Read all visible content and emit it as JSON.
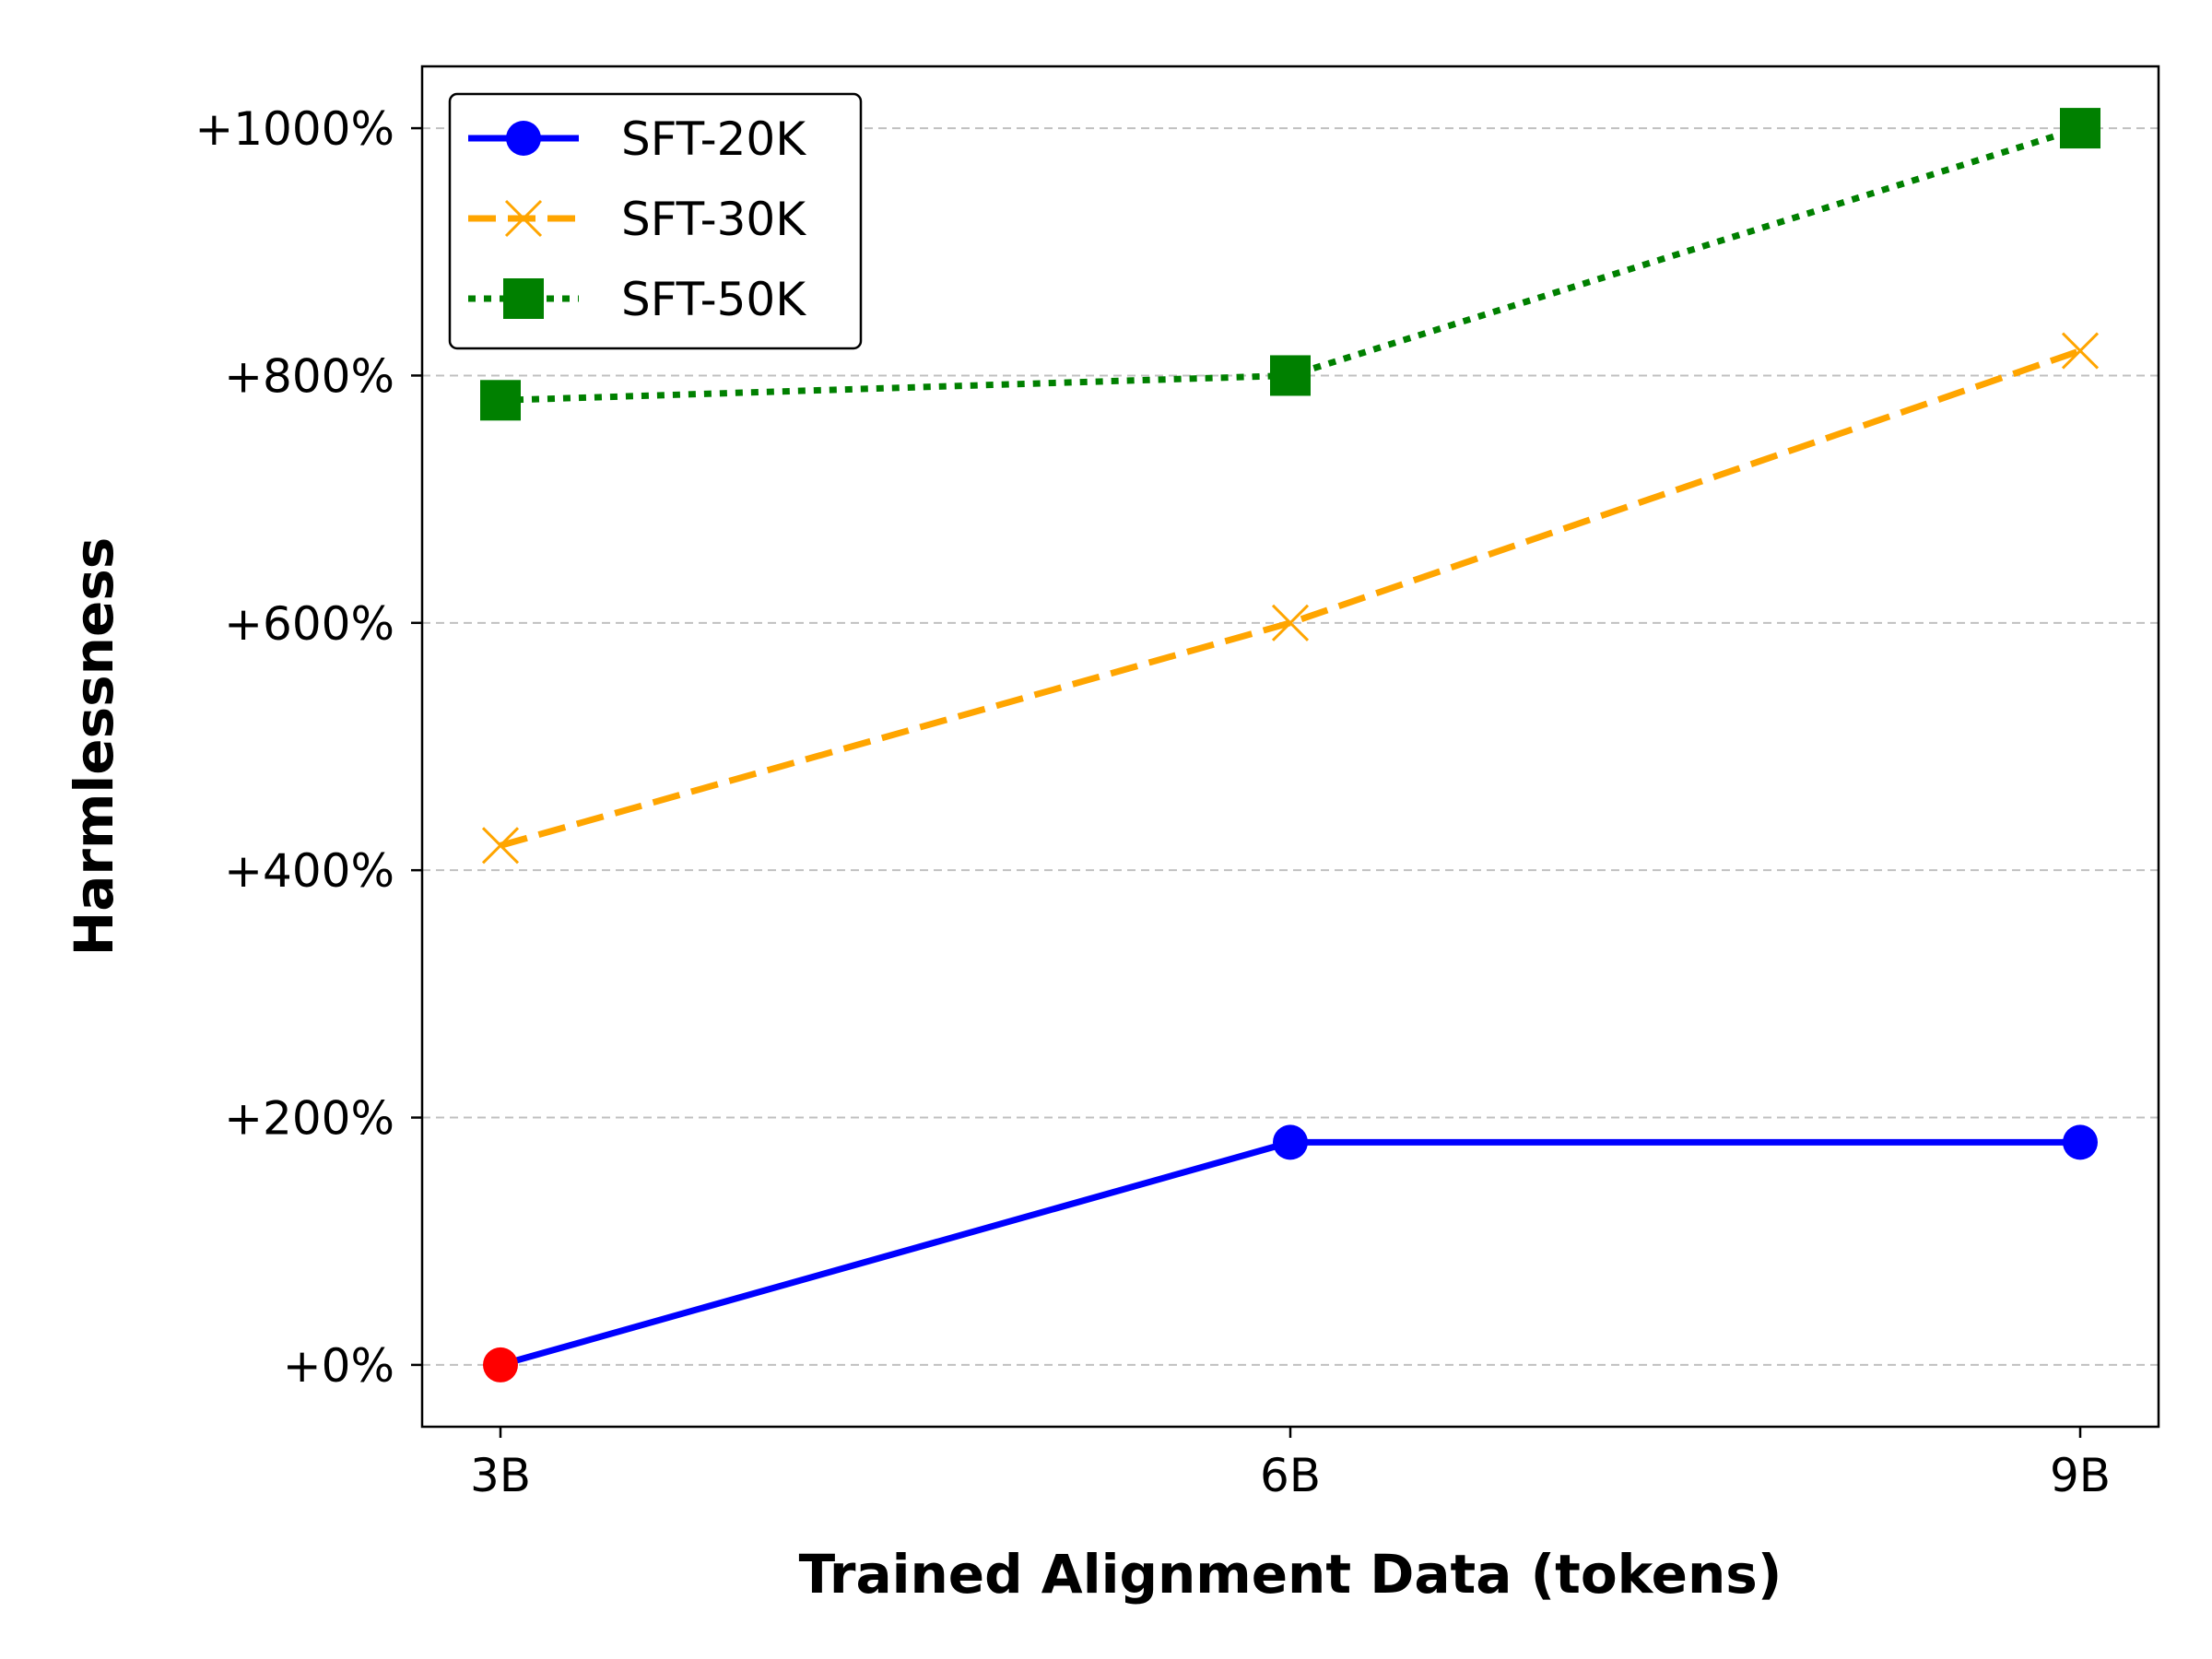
{
  "chart_data": {
    "type": "line",
    "xlabel": "Trained Alignment Data (tokens)",
    "ylabel": "Harmlessness",
    "categories": [
      "3B",
      "6B",
      "9B"
    ],
    "y_ticks": [
      0,
      200,
      400,
      600,
      800,
      1000
    ],
    "y_tick_labels": [
      "+0%",
      "+200%",
      "+400%",
      "+600%",
      "+800%",
      "+1000%"
    ],
    "ylim": [
      -50,
      1050
    ],
    "grid": "horizontal dashed",
    "legend_position": "top-left",
    "series": [
      {
        "name": "SFT-20K",
        "values": [
          0,
          180,
          180
        ],
        "color": "#0000ff",
        "line_style": "solid",
        "marker": "circle",
        "highlight_points": [
          {
            "index": 0,
            "color": "#ff0000"
          }
        ]
      },
      {
        "name": "SFT-30K",
        "values": [
          420,
          600,
          820
        ],
        "color": "#ffa500",
        "line_style": "dashed",
        "marker": "x"
      },
      {
        "name": "SFT-50K",
        "values": [
          780,
          800,
          1000
        ],
        "color": "#008000",
        "line_style": "dotted",
        "marker": "square"
      }
    ]
  }
}
